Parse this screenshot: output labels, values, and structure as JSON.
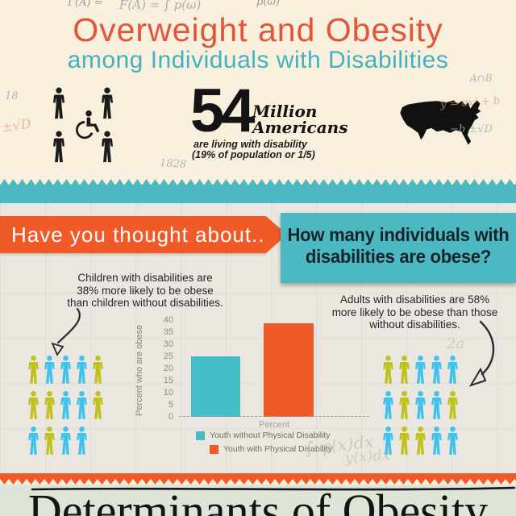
{
  "header": {
    "title_line1": "Overweight and Obesity",
    "title_line2": "among Individuals with Disabilities",
    "stat": {
      "number": "54",
      "unit_line1": "Million",
      "unit_line2": "Americans",
      "caption_line1": "are living with disability",
      "caption_line2": "(19% of population or 1/5)"
    }
  },
  "banner": {
    "left_label": "Have you thought about...",
    "question_line1": "How many individuals with",
    "question_line2": "disabilities are obese?"
  },
  "mid": {
    "children_note": {
      "lines": [
        "Children with disabilities are",
        "38% more likely to be obese",
        "than children without disabilities."
      ]
    },
    "adults_note": {
      "lines": [
        "Adults with disabilities are 58%",
        "more likely to be obese than those",
        "without disabilities."
      ]
    },
    "pictogram_left": {
      "rows": [
        [
          "yellow",
          "blue",
          "blue",
          "blue",
          "yellow"
        ],
        [
          "yellow",
          "yellow",
          "blue",
          "blue",
          "yellow"
        ],
        [
          "blue",
          "yellow",
          "blue",
          "blue"
        ]
      ]
    },
    "pictogram_right": {
      "rows": [
        [
          "yellow",
          "yellow",
          "blue",
          "blue",
          "blue"
        ],
        [
          "blue",
          "yellow",
          "blue",
          "blue",
          "yellow"
        ],
        [
          "blue",
          "yellow",
          "yellow",
          "blue",
          "blue"
        ]
      ]
    }
  },
  "chart_data": {
    "type": "bar",
    "title": "",
    "xlabel": "Percent",
    "ylabel": "Percent who are obese",
    "ylim": [
      0,
      40
    ],
    "ytick_step": 5,
    "yticks": [
      "40",
      "35",
      "30",
      "25",
      "20",
      "15",
      "10",
      "5",
      "0"
    ],
    "categories": [
      "Youth without Physical Disability",
      "Youth with Physical Disability"
    ],
    "series": [
      {
        "name": "Youth without Physical Disability",
        "value": 25,
        "color": "#45bdc7"
      },
      {
        "name": "Youth with Physical Disability",
        "value": 38.5,
        "color": "#f05a28"
      }
    ],
    "legend_position": "bottom",
    "grid": false,
    "baseline_style": "dashed"
  },
  "footer": {
    "section_title": "Determinants of Obesity"
  },
  "palette": {
    "accent_orange": "#f05a28",
    "accent_teal": "#4cb9c2",
    "title_orange": "#e0563a",
    "title_teal": "#43b2be",
    "cream_bg": "#f8f0dd",
    "mid_bg": "#eae7e1",
    "sage_bg": "#dde5d8",
    "person_blue": "#3fc3ee",
    "person_yellow": "#bfc21d"
  },
  "background_math": [
    "F(A) = ∫ p(ω)",
    "Γ(A) =",
    "p(ω)",
    "A∩B",
    "y = ax² + b",
    "−b ±√D",
    "±√D",
    "18",
    "1828",
    "∫ φ(x)dx",
    "2a",
    "y(x)dx"
  ]
}
